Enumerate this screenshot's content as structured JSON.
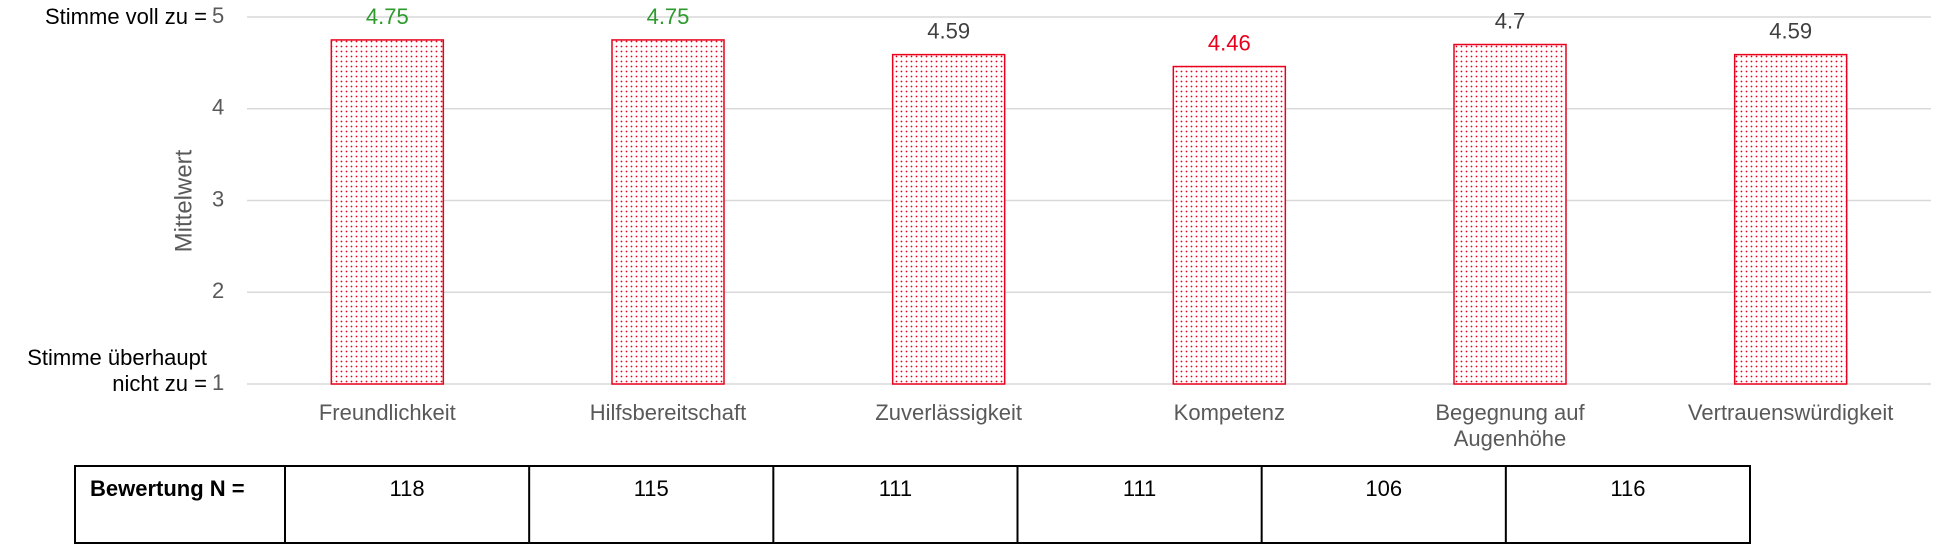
{
  "chart_data": {
    "type": "bar",
    "y_label": "Mittelwert",
    "y_top_annotation": "Stimme voll zu =",
    "y_bottom_annotation": "Stimme überhaupt nicht zu =",
    "categories": [
      "Freundlichkeit",
      "Hilfsbereitschaft",
      "Zuverlässigkeit",
      "Kompetenz",
      "Begegnung auf Augenhöhe",
      "Vertrauenswürdigkeit"
    ],
    "values": [
      4.75,
      4.75,
      4.59,
      4.46,
      4.7,
      4.59
    ],
    "value_label_colors": [
      "#2e9a2e",
      "#2e9a2e",
      "#404040",
      "#e8001c",
      "#404040",
      "#404040"
    ],
    "color": "#e8001c",
    "ylim": [
      1,
      5
    ],
    "yticks": [
      1,
      2,
      3,
      4,
      5
    ],
    "grid": true
  },
  "table": {
    "header": "Bewertung N =",
    "values": [
      118,
      115,
      111,
      111,
      106,
      116
    ]
  }
}
